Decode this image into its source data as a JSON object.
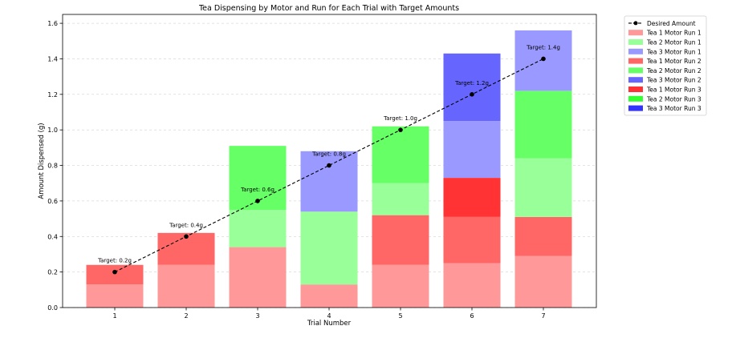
{
  "chart_data": {
    "type": "bar",
    "stacked": true,
    "title": "Tea Dispensing by Motor and Run for Each Trial with Target Amounts",
    "xlabel": "Trial Number",
    "ylabel": "Amount Dispensed (g)",
    "categories": [
      "1",
      "2",
      "3",
      "4",
      "5",
      "6",
      "7"
    ],
    "ylim": [
      0,
      1.65
    ],
    "yticks": [
      "0.0",
      "0.2",
      "0.4",
      "0.6",
      "0.8",
      "1.0",
      "1.2",
      "1.4",
      "1.6"
    ],
    "grid": "horizontal dashed",
    "legend_position": "outside right top",
    "series": [
      {
        "name": "Tea 1 Motor Run 1",
        "color": "#ff9999",
        "values": [
          0.13,
          0.24,
          0.34,
          0.13,
          0.24,
          0.25,
          0.29
        ]
      },
      {
        "name": "Tea 2 Motor Run 1",
        "color": "#99ff99",
        "values": [
          0,
          0,
          0.21,
          0.41,
          0.18,
          0,
          0.33
        ]
      },
      {
        "name": "Tea 3 Motor Run 1",
        "color": "#9999ff",
        "values": [
          0,
          0,
          0,
          0.34,
          0,
          0.32,
          0.34
        ]
      },
      {
        "name": "Tea 1 Motor Run 2",
        "color": "#ff6666",
        "values": [
          0.11,
          0.18,
          0,
          0,
          0.28,
          0.26,
          0.22
        ]
      },
      {
        "name": "Tea 2 Motor Run 2",
        "color": "#66ff66",
        "values": [
          0,
          0,
          0.36,
          0,
          0.32,
          0,
          0.38
        ]
      },
      {
        "name": "Tea 3 Motor Run 2",
        "color": "#6666ff",
        "values": [
          0,
          0,
          0,
          0,
          0,
          0.38,
          0
        ]
      },
      {
        "name": "Tea 1 Motor Run 3",
        "color": "#ff3333",
        "values": [
          0,
          0,
          0,
          0,
          0,
          0.22,
          0
        ]
      },
      {
        "name": "Tea 2 Motor Run 3",
        "color": "#33ff33",
        "values": [
          0,
          0,
          0,
          0,
          0,
          0,
          0
        ]
      },
      {
        "name": "Tea 3 Motor Run 3",
        "color": "#3333ff",
        "values": [
          0,
          0,
          0,
          0,
          0,
          0,
          0
        ]
      }
    ],
    "stack_order": [
      [
        0,
        3
      ],
      [
        0,
        3
      ],
      [
        0,
        1,
        4
      ],
      [
        0,
        1,
        2
      ],
      [
        0,
        3,
        1,
        4
      ],
      [
        0,
        3,
        6,
        2,
        5
      ],
      [
        0,
        3,
        1,
        4,
        2
      ]
    ],
    "desired": {
      "name": "Desired Amount",
      "color": "#000000",
      "values": [
        0.2,
        0.4,
        0.6,
        0.8,
        1.0,
        1.2,
        1.4
      ],
      "labels": [
        "Target: 0.2g",
        "Target: 0.4g",
        "Target: 0.6g",
        "Target: 0.8g",
        "Target: 1.0g",
        "Target: 1.2g",
        "Target: 1.4g"
      ]
    }
  }
}
